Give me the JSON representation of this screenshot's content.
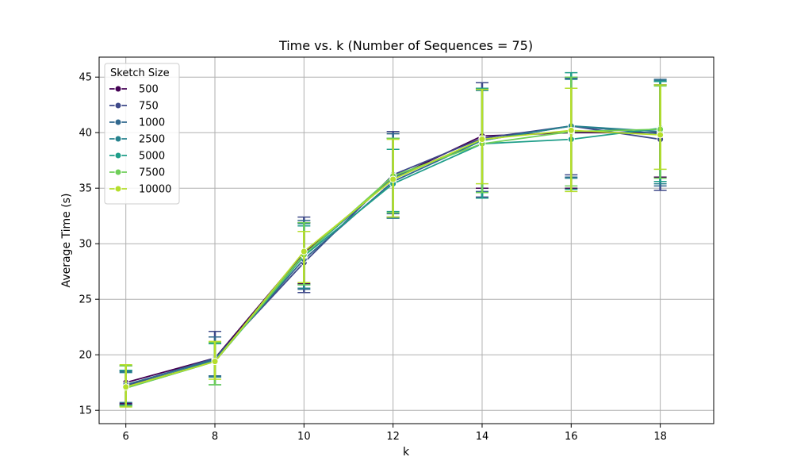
{
  "chart_data": {
    "type": "line",
    "title": "Time vs. k (Number of Sequences = 75)",
    "xlabel": "k",
    "ylabel": "Average Time (s)",
    "x": [
      6,
      8,
      10,
      12,
      14,
      16,
      18
    ],
    "x_ticks": [
      6,
      8,
      10,
      12,
      14,
      16,
      18
    ],
    "y_ticks": [
      15,
      20,
      25,
      30,
      35,
      40,
      45
    ],
    "xlim": [
      5.4,
      19.2
    ],
    "ylim": [
      13.8,
      46.8
    ],
    "grid": true,
    "legend": {
      "title": "Sketch Size",
      "placement": "top-left"
    },
    "series": [
      {
        "name": "500",
        "color": "#440154",
        "values": [
          17.5,
          19.7,
          29.2,
          35.9,
          39.7,
          40.0,
          40.0
        ],
        "err_low": [
          15.6,
          18.1,
          26.4,
          32.4,
          35.0,
          35.0,
          36.0
        ],
        "err_high": [
          19.0,
          21.0,
          31.9,
          39.5,
          44.0,
          44.9,
          44.3
        ]
      },
      {
        "name": "750",
        "color": "#3e4989",
        "values": [
          17.2,
          19.7,
          28.3,
          36.2,
          39.5,
          40.6,
          39.4
        ],
        "err_low": [
          15.5,
          18.0,
          25.6,
          32.3,
          34.2,
          36.2,
          34.8
        ],
        "err_high": [
          18.6,
          22.1,
          32.4,
          40.1,
          44.5,
          45.0,
          44.6
        ]
      },
      {
        "name": "1000",
        "color": "#31688e",
        "values": [
          17.3,
          19.6,
          28.6,
          35.6,
          39.3,
          40.6,
          39.9
        ],
        "err_low": [
          15.7,
          18.1,
          25.9,
          32.7,
          34.7,
          36.0,
          35.2
        ],
        "err_high": [
          18.5,
          21.6,
          32.1,
          39.9,
          43.9,
          44.9,
          44.8
        ]
      },
      {
        "name": "2500",
        "color": "#26828e",
        "values": [
          17.1,
          19.5,
          29.0,
          35.9,
          39.3,
          40.6,
          40.1
        ],
        "err_low": [
          15.5,
          18.0,
          26.0,
          32.3,
          34.1,
          35.9,
          35.4
        ],
        "err_high": [
          18.4,
          21.0,
          31.8,
          39.5,
          43.8,
          44.8,
          44.7
        ]
      },
      {
        "name": "5000",
        "color": "#1f9e89",
        "values": [
          17.0,
          19.4,
          28.9,
          35.4,
          39.0,
          39.4,
          40.4
        ],
        "err_low": [
          15.4,
          17.3,
          26.3,
          32.9,
          34.1,
          34.9,
          35.6
        ],
        "err_high": [
          18.6,
          21.0,
          31.6,
          38.5,
          44.0,
          45.4,
          44.6
        ]
      },
      {
        "name": "7500",
        "color": "#6ece58",
        "values": [
          17.0,
          19.4,
          29.0,
          36.1,
          39.0,
          40.1,
          40.3
        ],
        "err_low": [
          15.4,
          17.3,
          26.3,
          32.8,
          34.6,
          35.2,
          35.9
        ],
        "err_high": [
          19.0,
          21.1,
          31.9,
          39.5,
          43.9,
          45.0,
          44.2
        ]
      },
      {
        "name": "10000",
        "color": "#b5de2b",
        "values": [
          17.1,
          19.4,
          29.3,
          35.8,
          39.4,
          40.2,
          39.8
        ],
        "err_low": [
          15.3,
          17.8,
          26.5,
          32.4,
          35.4,
          34.7,
          36.7
        ],
        "err_high": [
          19.1,
          21.2,
          31.1,
          39.4,
          43.9,
          44.0,
          44.3
        ]
      }
    ]
  }
}
